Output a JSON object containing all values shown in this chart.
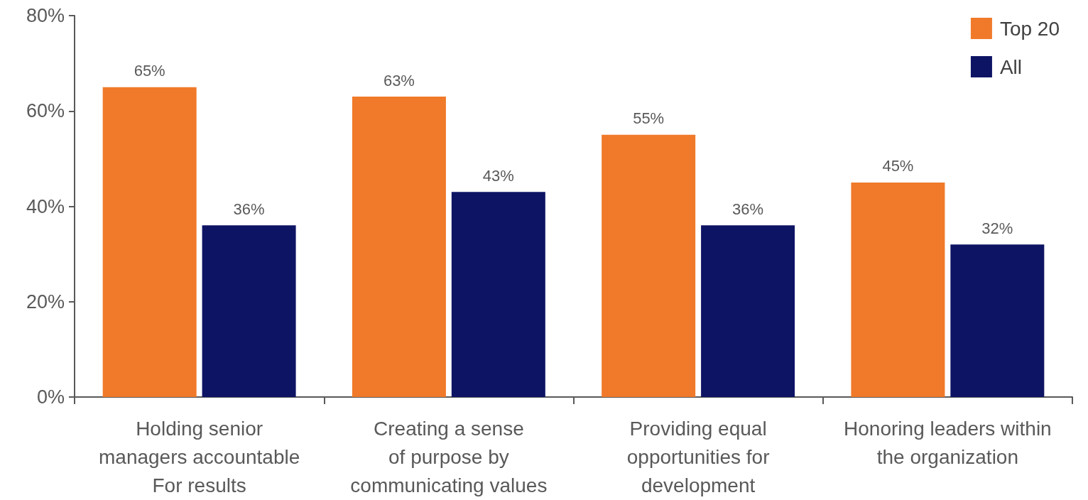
{
  "chart_data": {
    "type": "bar",
    "categories": [
      "Holding senior\nmanagers accountable\nFor results",
      "Creating a sense\nof purpose by\ncommunicating values",
      "Providing equal\nopportunities for\ndevelopment",
      "Honoring leaders within\nthe organization"
    ],
    "series": [
      {
        "name": "Top 20",
        "color": "#f07a2a",
        "values": [
          65,
          63,
          55,
          45
        ],
        "value_labels": [
          "65%",
          "63%",
          "55%",
          "45%"
        ]
      },
      {
        "name": "All",
        "color": "#0e1464",
        "values": [
          36,
          43,
          36,
          32
        ],
        "value_labels": [
          "36%",
          "43%",
          "36%",
          "32%"
        ]
      }
    ],
    "ylim": [
      0,
      80
    ],
    "yticks": [
      {
        "value": 0,
        "label": "0%"
      },
      {
        "value": 20,
        "label": "20%"
      },
      {
        "value": 40,
        "label": "40%"
      },
      {
        "value": 60,
        "label": "60%"
      },
      {
        "value": 80,
        "label": "80%"
      }
    ],
    "grid": false,
    "legend": "top right"
  }
}
